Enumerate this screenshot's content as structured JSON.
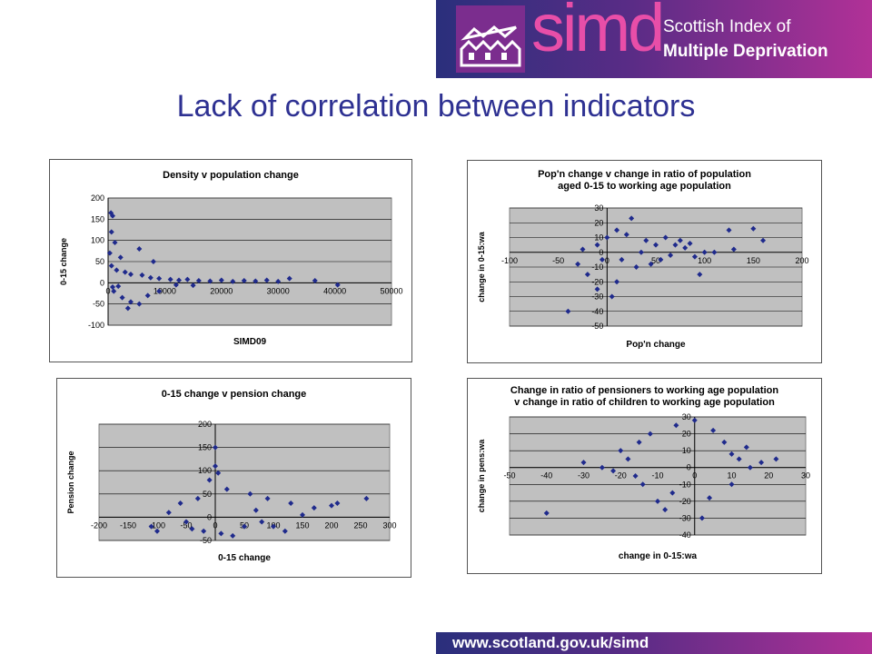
{
  "header": {
    "logo_word": "simd",
    "logo_line1": "Scottish Index of",
    "logo_line2": "Multiple Deprivation"
  },
  "slide_title": "Lack of correlation between indicators",
  "footer_url": "www.scotland.gov.uk/simd",
  "colors": {
    "marker": "#1f2a8c",
    "plot_bg": "#c0c0c0",
    "title": "#2e3192"
  },
  "chart_data": [
    {
      "type": "scatter",
      "title": [
        "Density v population change"
      ],
      "xlabel": "SIMD09",
      "ylabel": "0-15 change",
      "xlim": [
        0,
        50000
      ],
      "ylim": [
        -100,
        200
      ],
      "xticks": [
        0,
        10000,
        20000,
        30000,
        40000,
        50000
      ],
      "yticks": [
        -100,
        -50,
        0,
        50,
        100,
        150,
        200
      ],
      "grid": true,
      "legend": "none",
      "points": [
        [
          500,
          165
        ],
        [
          800,
          158
        ],
        [
          600,
          120
        ],
        [
          1200,
          95
        ],
        [
          300,
          70
        ],
        [
          2200,
          60
        ],
        [
          5500,
          80
        ],
        [
          8000,
          50
        ],
        [
          600,
          40
        ],
        [
          1500,
          30
        ],
        [
          3000,
          25
        ],
        [
          4000,
          20
        ],
        [
          6000,
          18
        ],
        [
          7500,
          12
        ],
        [
          9000,
          10
        ],
        [
          11000,
          8
        ],
        [
          12500,
          6
        ],
        [
          14000,
          8
        ],
        [
          16000,
          5
        ],
        [
          18000,
          4
        ],
        [
          20000,
          6
        ],
        [
          22000,
          3
        ],
        [
          24000,
          5
        ],
        [
          26000,
          4
        ],
        [
          28000,
          6
        ],
        [
          30000,
          3
        ],
        [
          32000,
          10
        ],
        [
          36500,
          5
        ],
        [
          40500,
          -5
        ],
        [
          1000,
          -20
        ],
        [
          2500,
          -35
        ],
        [
          4000,
          -45
        ],
        [
          3500,
          -60
        ],
        [
          5500,
          -50
        ],
        [
          7000,
          -30
        ],
        [
          9000,
          -20
        ],
        [
          800,
          -10
        ],
        [
          1800,
          -8
        ],
        [
          12000,
          -5
        ],
        [
          15000,
          -6
        ]
      ]
    },
    {
      "type": "scatter",
      "title": [
        "Pop'n change v change in ratio of population",
        "aged 0-15 to working age population"
      ],
      "xlabel": "Pop'n change",
      "ylabel": "change in 0-15:wa",
      "xlim": [
        -100,
        200
      ],
      "ylim": [
        -50,
        30
      ],
      "xticks": [
        -100,
        -50,
        0,
        50,
        100,
        150,
        200
      ],
      "yticks": [
        -50,
        -40,
        -30,
        -20,
        -10,
        0,
        10,
        20,
        30
      ],
      "grid": true,
      "legend": "none",
      "points": [
        [
          -40,
          -40
        ],
        [
          -20,
          -15
        ],
        [
          -30,
          -8
        ],
        [
          -10,
          -25
        ],
        [
          5,
          -30
        ],
        [
          10,
          -20
        ],
        [
          0,
          10
        ],
        [
          10,
          15
        ],
        [
          20,
          12
        ],
        [
          25,
          23
        ],
        [
          40,
          8
        ],
        [
          50,
          5
        ],
        [
          60,
          10
        ],
        [
          70,
          5
        ],
        [
          80,
          3
        ],
        [
          90,
          -3
        ],
        [
          100,
          0
        ],
        [
          110,
          0
        ],
        [
          125,
          15
        ],
        [
          150,
          16
        ],
        [
          160,
          8
        ],
        [
          130,
          2
        ],
        [
          95,
          -15
        ],
        [
          -10,
          5
        ],
        [
          -5,
          -5
        ],
        [
          15,
          -5
        ],
        [
          30,
          -10
        ],
        [
          45,
          -8
        ],
        [
          35,
          0
        ],
        [
          55,
          -5
        ],
        [
          -25,
          2
        ],
        [
          65,
          -2
        ],
        [
          75,
          8
        ],
        [
          85,
          6
        ]
      ]
    },
    {
      "type": "scatter",
      "title": [
        "0-15 change v pension change"
      ],
      "xlabel": "0-15 change",
      "ylabel": "Pension change",
      "xlim": [
        -200,
        300
      ],
      "ylim": [
        -50,
        200
      ],
      "xticks": [
        -200,
        -150,
        -100,
        -50,
        0,
        50,
        100,
        150,
        200,
        250,
        300
      ],
      "yticks": [
        -50,
        0,
        50,
        100,
        150,
        200
      ],
      "grid": true,
      "legend": "none",
      "points": [
        [
          0,
          150
        ],
        [
          0,
          110
        ],
        [
          5,
          95
        ],
        [
          -10,
          80
        ],
        [
          20,
          60
        ],
        [
          -30,
          40
        ],
        [
          -60,
          30
        ],
        [
          -80,
          10
        ],
        [
          -110,
          -20
        ],
        [
          -50,
          -10
        ],
        [
          -20,
          -30
        ],
        [
          10,
          -35
        ],
        [
          50,
          -20
        ],
        [
          80,
          -10
        ],
        [
          100,
          -20
        ],
        [
          120,
          -30
        ],
        [
          150,
          5
        ],
        [
          170,
          20
        ],
        [
          200,
          25
        ],
        [
          210,
          30
        ],
        [
          260,
          40
        ],
        [
          60,
          50
        ],
        [
          90,
          40
        ],
        [
          130,
          30
        ],
        [
          -100,
          -30
        ],
        [
          30,
          -40
        ],
        [
          70,
          15
        ],
        [
          -40,
          -25
        ]
      ]
    },
    {
      "type": "scatter",
      "title": [
        "Change in ratio of pensioners to working age population",
        "v change in ratio of children to working age population"
      ],
      "xlabel": "change in 0-15:wa",
      "ylabel": "change in pens:wa",
      "xlim": [
        -50,
        30
      ],
      "ylim": [
        -40,
        30
      ],
      "xticks": [
        -50,
        -40,
        -30,
        -20,
        -10,
        0,
        10,
        20,
        30
      ],
      "yticks": [
        -40,
        -30,
        -20,
        -10,
        0,
        10,
        20,
        30
      ],
      "grid": true,
      "legend": "none",
      "points": [
        [
          -40,
          -27
        ],
        [
          -30,
          3
        ],
        [
          -25,
          0
        ],
        [
          -22,
          -2
        ],
        [
          -20,
          10
        ],
        [
          -18,
          5
        ],
        [
          -15,
          15
        ],
        [
          -12,
          20
        ],
        [
          -10,
          -20
        ],
        [
          -8,
          -25
        ],
        [
          -5,
          25
        ],
        [
          0,
          28
        ],
        [
          2,
          -30
        ],
        [
          5,
          22
        ],
        [
          8,
          15
        ],
        [
          10,
          8
        ],
        [
          12,
          5
        ],
        [
          15,
          0
        ],
        [
          18,
          3
        ],
        [
          22,
          5
        ],
        [
          -14,
          -10
        ],
        [
          -6,
          -15
        ],
        [
          4,
          -18
        ],
        [
          10,
          -10
        ],
        [
          -16,
          -5
        ],
        [
          14,
          12
        ]
      ]
    }
  ]
}
